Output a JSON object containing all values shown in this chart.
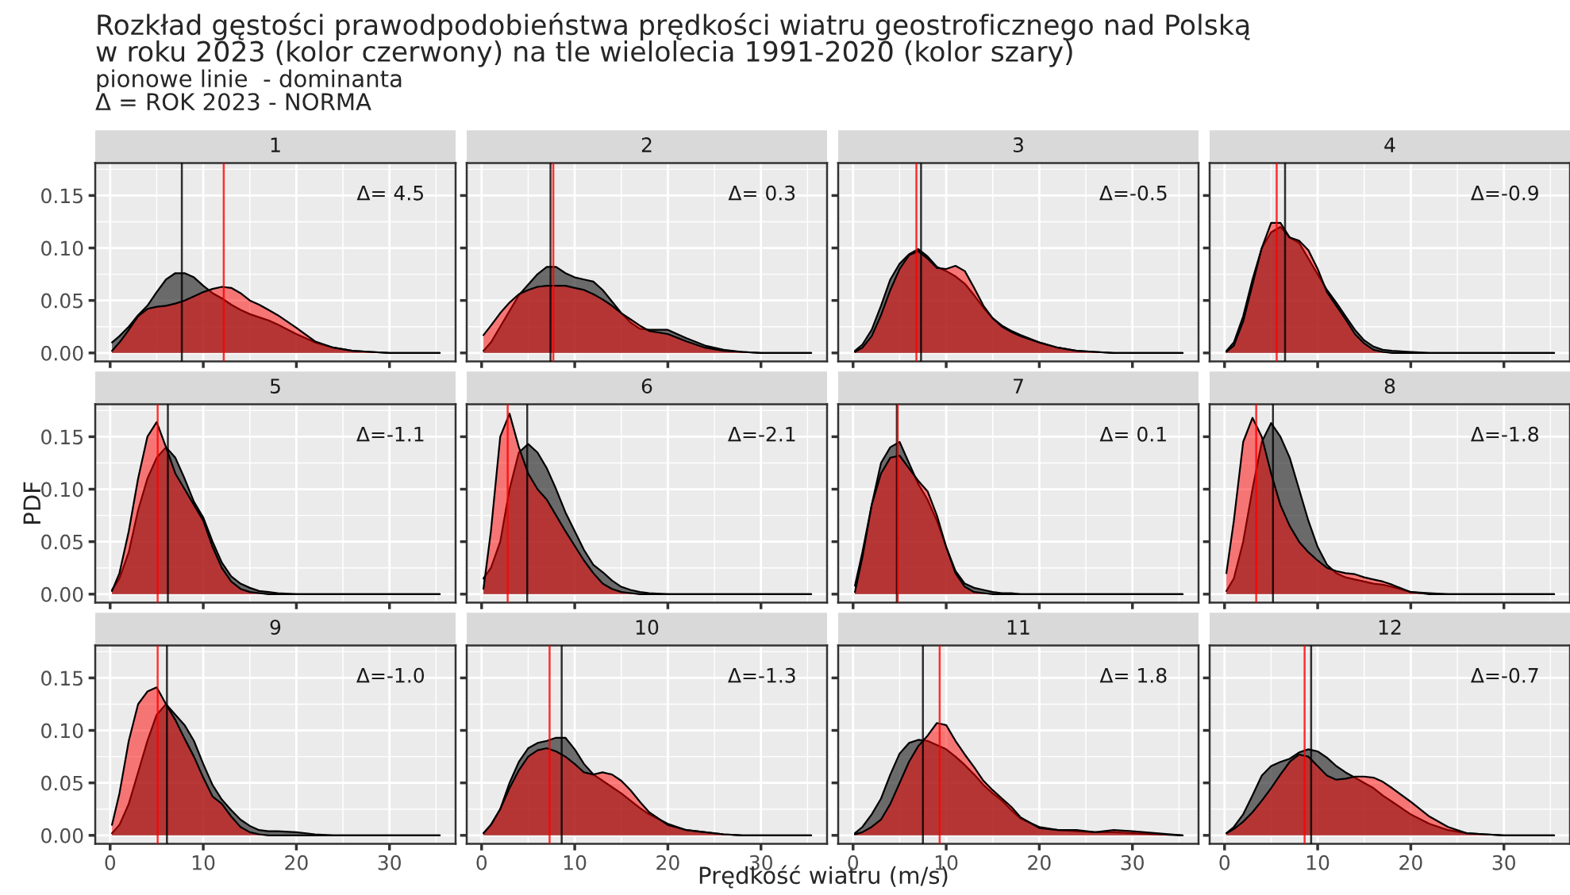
{
  "chart_data": [
    {
      "type": "area",
      "title": "1",
      "tick_labels": "y",
      "grid": true,
      "annotations": [
        "Rozkład gęstości prawodpodobieństwa prędkości wiatru geostroficznego nad Polską\nw roku 2023 (kolor czerwony) na tle wielolecia 1991-2020 (kolor szary)",
        "pionowe linie  - dominanta",
        "Δ = ROK 2023 - NORMA",
        "Δ= 4.5"
      ],
      "x": [
        0.2,
        1,
        2,
        3,
        4,
        5,
        6,
        7,
        8,
        9,
        10,
        11,
        12,
        13,
        14,
        15,
        16,
        17,
        18,
        20,
        22,
        24,
        26,
        28,
        30,
        35.4
      ],
      "series": [
        {
          "color": "#333333",
          "values": [
            0.01,
            0.016,
            0.025,
            0.036,
            0.045,
            0.058,
            0.07,
            0.076,
            0.076,
            0.072,
            0.064,
            0.057,
            0.052,
            0.046,
            0.041,
            0.037,
            0.034,
            0.031,
            0.027,
            0.018,
            0.01,
            0.005,
            0.002,
            0.001,
            0,
            0
          ]
        },
        {
          "color": "#ff0000",
          "values": [
            0.002,
            0.01,
            0.022,
            0.035,
            0.042,
            0.044,
            0.045,
            0.047,
            0.05,
            0.054,
            0.058,
            0.061,
            0.063,
            0.062,
            0.057,
            0.05,
            0.046,
            0.041,
            0.036,
            0.024,
            0.011,
            0.005,
            0.002,
            0.001,
            0,
            0
          ]
        }
      ],
      "ref_lines": [
        {
          "axis": "x",
          "value": 7.7,
          "color": "#000000"
        },
        {
          "axis": "x",
          "value": 12.2,
          "color": "#ff0000"
        }
      ],
      "xlim": [
        -1.6,
        37.1
      ],
      "xticks": [
        {
          "value": 0,
          "label": null
        },
        {
          "value": 10,
          "label": null
        },
        {
          "value": 20,
          "label": null
        },
        {
          "value": 30,
          "label": null
        }
      ],
      "ylim": [
        -0.008,
        0.181
      ],
      "yticks": [
        {
          "value": 0,
          "label": "0.00"
        },
        {
          "value": 0.05,
          "label": "0.05"
        },
        {
          "value": 0.1,
          "label": "0.10"
        },
        {
          "value": 0.15,
          "label": "0.15"
        }
      ]
    },
    {
      "type": "area",
      "title": "2",
      "tick_labels": false,
      "grid": true,
      "annotations": [
        "Δ= 0.3"
      ],
      "x": [
        0.2,
        1,
        2,
        3,
        4,
        5,
        6,
        7,
        8,
        9,
        10,
        11,
        12,
        13,
        14,
        15,
        16,
        17,
        18,
        20,
        22,
        24,
        26,
        28,
        30,
        35.4
      ],
      "series": [
        {
          "color": "#333333",
          "values": [
            0.002,
            0.01,
            0.025,
            0.04,
            0.055,
            0.065,
            0.075,
            0.082,
            0.082,
            0.076,
            0.072,
            0.07,
            0.068,
            0.06,
            0.049,
            0.038,
            0.029,
            0.023,
            0.022,
            0.022,
            0.014,
            0.007,
            0.003,
            0.001,
            0,
            0
          ]
        },
        {
          "color": "#ff0000",
          "values": [
            0.017,
            0.026,
            0.038,
            0.048,
            0.056,
            0.06,
            0.063,
            0.064,
            0.064,
            0.064,
            0.062,
            0.06,
            0.056,
            0.051,
            0.045,
            0.038,
            0.032,
            0.026,
            0.021,
            0.018,
            0.011,
            0.005,
            0.002,
            0.001,
            0,
            0
          ]
        }
      ],
      "ref_lines": [
        {
          "axis": "x",
          "value": 7.4,
          "color": "#000000"
        },
        {
          "axis": "x",
          "value": 7.7,
          "color": "#ff0000"
        }
      ],
      "xlim": [
        -1.6,
        37.1
      ],
      "xticks": [
        {
          "value": 0,
          "label": null
        },
        {
          "value": 10,
          "label": null
        },
        {
          "value": 20,
          "label": null
        },
        {
          "value": 30,
          "label": null
        }
      ],
      "ylim": [
        -0.008,
        0.181
      ],
      "yticks": [
        {
          "value": 0,
          "label": null
        },
        {
          "value": 0.05,
          "label": null
        },
        {
          "value": 0.1,
          "label": null
        },
        {
          "value": 0.15,
          "label": null
        }
      ]
    },
    {
      "type": "area",
      "title": "3",
      "tick_labels": false,
      "grid": true,
      "annotations": [
        "Δ=-0.5"
      ],
      "x": [
        0.2,
        1,
        2,
        3,
        4,
        5,
        6,
        7,
        8,
        9,
        10,
        11,
        12,
        13,
        14,
        15,
        16,
        17,
        18,
        20,
        22,
        24,
        26,
        28,
        30,
        35.4
      ],
      "series": [
        {
          "color": "#333333",
          "values": [
            0.002,
            0.008,
            0.022,
            0.045,
            0.07,
            0.085,
            0.094,
            0.099,
            0.092,
            0.082,
            0.078,
            0.073,
            0.066,
            0.055,
            0.043,
            0.033,
            0.026,
            0.021,
            0.017,
            0.01,
            0.005,
            0.002,
            0.001,
            0,
            0,
            0
          ]
        },
        {
          "color": "#ff0000",
          "values": [
            0.001,
            0.005,
            0.016,
            0.036,
            0.06,
            0.08,
            0.093,
            0.097,
            0.09,
            0.081,
            0.08,
            0.083,
            0.078,
            0.062,
            0.045,
            0.033,
            0.025,
            0.02,
            0.016,
            0.01,
            0.005,
            0.002,
            0.001,
            0,
            0,
            0
          ]
        }
      ],
      "ref_lines": [
        {
          "axis": "x",
          "value": 7.3,
          "color": "#000000"
        },
        {
          "axis": "x",
          "value": 6.8,
          "color": "#ff0000"
        }
      ],
      "xlim": [
        -1.6,
        37.1
      ],
      "xticks": [
        {
          "value": 0,
          "label": null
        },
        {
          "value": 10,
          "label": null
        },
        {
          "value": 20,
          "label": null
        },
        {
          "value": 30,
          "label": null
        }
      ],
      "ylim": [
        -0.008,
        0.181
      ],
      "yticks": [
        {
          "value": 0,
          "label": null
        },
        {
          "value": 0.05,
          "label": null
        },
        {
          "value": 0.1,
          "label": null
        },
        {
          "value": 0.15,
          "label": null
        }
      ]
    },
    {
      "type": "area",
      "title": "4",
      "tick_labels": false,
      "grid": true,
      "annotations": [
        "Δ=-0.9"
      ],
      "x": [
        0.2,
        1,
        2,
        3,
        4,
        5,
        6,
        7,
        8,
        9,
        10,
        11,
        12,
        13,
        14,
        15,
        16,
        17,
        18,
        20,
        22,
        24,
        26,
        28,
        30,
        35.4
      ],
      "series": [
        {
          "color": "#333333",
          "values": [
            0.002,
            0.01,
            0.035,
            0.07,
            0.1,
            0.115,
            0.12,
            0.11,
            0.105,
            0.09,
            0.075,
            0.06,
            0.048,
            0.035,
            0.022,
            0.012,
            0.006,
            0.003,
            0.002,
            0.001,
            0,
            0,
            0,
            0,
            0,
            0
          ]
        },
        {
          "color": "#ff0000",
          "values": [
            0.001,
            0.007,
            0.03,
            0.065,
            0.1,
            0.124,
            0.124,
            0.11,
            0.107,
            0.098,
            0.08,
            0.058,
            0.045,
            0.032,
            0.018,
            0.009,
            0.003,
            0.001,
            0,
            0,
            0,
            0,
            0,
            0,
            0,
            0
          ]
        }
      ],
      "ref_lines": [
        {
          "axis": "x",
          "value": 6.5,
          "color": "#000000"
        },
        {
          "axis": "x",
          "value": 5.6,
          "color": "#ff0000"
        }
      ],
      "xlim": [
        -1.6,
        37.1
      ],
      "xticks": [
        {
          "value": 0,
          "label": null
        },
        {
          "value": 10,
          "label": null
        },
        {
          "value": 20,
          "label": null
        },
        {
          "value": 30,
          "label": null
        }
      ],
      "ylim": [
        -0.008,
        0.181
      ],
      "yticks": [
        {
          "value": 0,
          "label": null
        },
        {
          "value": 0.05,
          "label": null
        },
        {
          "value": 0.1,
          "label": null
        },
        {
          "value": 0.15,
          "label": null
        }
      ]
    },
    {
      "type": "area",
      "title": "5",
      "ylabel": "PDF",
      "tick_labels": "y",
      "grid": true,
      "annotations": [
        "Δ=-1.1"
      ],
      "x": [
        0.2,
        1,
        2,
        3,
        4,
        5,
        6,
        7,
        8,
        9,
        10,
        11,
        12,
        13,
        14,
        15,
        16,
        17,
        18,
        20,
        22,
        24,
        26,
        28,
        30,
        35.4
      ],
      "series": [
        {
          "color": "#333333",
          "values": [
            0.004,
            0.015,
            0.04,
            0.08,
            0.11,
            0.13,
            0.14,
            0.13,
            0.11,
            0.088,
            0.073,
            0.05,
            0.03,
            0.017,
            0.01,
            0.006,
            0.003,
            0.002,
            0.001,
            0,
            0,
            0,
            0,
            0,
            0,
            0
          ]
        },
        {
          "color": "#ff0000",
          "values": [
            0.003,
            0.02,
            0.06,
            0.11,
            0.15,
            0.164,
            0.14,
            0.115,
            0.1,
            0.085,
            0.07,
            0.045,
            0.025,
            0.012,
            0.005,
            0.002,
            0.001,
            0,
            0,
            0,
            0,
            0,
            0,
            0,
            0,
            0
          ]
        }
      ],
      "ref_lines": [
        {
          "axis": "x",
          "value": 6.2,
          "color": "#000000"
        },
        {
          "axis": "x",
          "value": 5.1,
          "color": "#ff0000"
        }
      ],
      "xlim": [
        -1.6,
        37.1
      ],
      "xticks": [
        {
          "value": 0,
          "label": null
        },
        {
          "value": 10,
          "label": null
        },
        {
          "value": 20,
          "label": null
        },
        {
          "value": 30,
          "label": null
        }
      ],
      "ylim": [
        -0.008,
        0.181
      ],
      "yticks": [
        {
          "value": 0,
          "label": "0.00"
        },
        {
          "value": 0.05,
          "label": "0.05"
        },
        {
          "value": 0.1,
          "label": "0.10"
        },
        {
          "value": 0.15,
          "label": "0.15"
        }
      ]
    },
    {
      "type": "area",
      "title": "6",
      "tick_labels": false,
      "grid": true,
      "annotations": [
        "Δ=-2.1"
      ],
      "x": [
        0.2,
        1,
        2,
        3,
        4,
        5,
        6,
        7,
        8,
        9,
        10,
        11,
        12,
        13,
        14,
        15,
        16,
        17,
        18,
        20,
        22,
        24,
        26,
        28,
        30,
        35.4
      ],
      "series": [
        {
          "color": "#333333",
          "values": [
            0.015,
            0.025,
            0.05,
            0.1,
            0.135,
            0.143,
            0.135,
            0.12,
            0.1,
            0.078,
            0.06,
            0.042,
            0.028,
            0.021,
            0.013,
            0.007,
            0.004,
            0.002,
            0.001,
            0,
            0,
            0,
            0,
            0,
            0,
            0
          ]
        },
        {
          "color": "#ff0000",
          "values": [
            0.005,
            0.06,
            0.15,
            0.172,
            0.14,
            0.115,
            0.1,
            0.09,
            0.075,
            0.06,
            0.046,
            0.032,
            0.02,
            0.01,
            0.005,
            0.002,
            0.001,
            0,
            0,
            0,
            0,
            0,
            0,
            0,
            0,
            0
          ]
        }
      ],
      "ref_lines": [
        {
          "axis": "x",
          "value": 4.9,
          "color": "#000000"
        },
        {
          "axis": "x",
          "value": 2.8,
          "color": "#ff0000"
        }
      ],
      "xlim": [
        -1.6,
        37.1
      ],
      "xticks": [
        {
          "value": 0,
          "label": null
        },
        {
          "value": 10,
          "label": null
        },
        {
          "value": 20,
          "label": null
        },
        {
          "value": 30,
          "label": null
        }
      ],
      "ylim": [
        -0.008,
        0.181
      ],
      "yticks": [
        {
          "value": 0,
          "label": null
        },
        {
          "value": 0.05,
          "label": null
        },
        {
          "value": 0.1,
          "label": null
        },
        {
          "value": 0.15,
          "label": null
        }
      ]
    },
    {
      "type": "area",
      "title": "7",
      "tick_labels": false,
      "grid": true,
      "annotations": [
        "Δ= 0.1"
      ],
      "x": [
        0.2,
        1,
        2,
        3,
        4,
        5,
        6,
        7,
        8,
        9,
        10,
        11,
        12,
        13,
        14,
        15,
        16,
        17,
        18,
        20,
        22,
        24,
        26,
        28,
        30,
        35.4
      ],
      "series": [
        {
          "color": "#333333",
          "values": [
            0.008,
            0.04,
            0.085,
            0.125,
            0.14,
            0.145,
            0.125,
            0.105,
            0.09,
            0.07,
            0.045,
            0.022,
            0.01,
            0.006,
            0.004,
            0.002,
            0.001,
            0.001,
            0,
            0,
            0,
            0,
            0,
            0,
            0,
            0
          ]
        },
        {
          "color": "#ff0000",
          "values": [
            0.002,
            0.035,
            0.085,
            0.115,
            0.13,
            0.132,
            0.12,
            0.108,
            0.098,
            0.075,
            0.045,
            0.02,
            0.007,
            0.002,
            0.001,
            0,
            0,
            0,
            0,
            0,
            0,
            0,
            0,
            0,
            0,
            0
          ]
        }
      ],
      "ref_lines": [
        {
          "axis": "x",
          "value": 4.7,
          "color": "#000000"
        },
        {
          "axis": "x",
          "value": 4.8,
          "color": "#ff0000"
        }
      ],
      "xlim": [
        -1.6,
        37.1
      ],
      "xticks": [
        {
          "value": 0,
          "label": null
        },
        {
          "value": 10,
          "label": null
        },
        {
          "value": 20,
          "label": null
        },
        {
          "value": 30,
          "label": null
        }
      ],
      "ylim": [
        -0.008,
        0.181
      ],
      "yticks": [
        {
          "value": 0,
          "label": null
        },
        {
          "value": 0.05,
          "label": null
        },
        {
          "value": 0.1,
          "label": null
        },
        {
          "value": 0.15,
          "label": null
        }
      ]
    },
    {
      "type": "area",
      "title": "8",
      "tick_labels": false,
      "grid": true,
      "annotations": [
        "Δ=-1.8"
      ],
      "x": [
        0.2,
        1,
        2,
        3,
        4,
        5,
        6,
        7,
        8,
        9,
        10,
        11,
        12,
        13,
        14,
        15,
        16,
        17,
        18,
        20,
        22,
        24,
        26,
        28,
        30,
        35.4
      ],
      "series": [
        {
          "color": "#333333",
          "values": [
            0.003,
            0.015,
            0.05,
            0.1,
            0.145,
            0.163,
            0.15,
            0.13,
            0.1,
            0.07,
            0.045,
            0.028,
            0.02,
            0.016,
            0.014,
            0.012,
            0.01,
            0.009,
            0.007,
            0.002,
            0.001,
            0,
            0,
            0,
            0,
            0
          ]
        },
        {
          "color": "#ff0000",
          "values": [
            0.02,
            0.07,
            0.145,
            0.168,
            0.15,
            0.115,
            0.085,
            0.065,
            0.05,
            0.04,
            0.032,
            0.025,
            0.022,
            0.02,
            0.019,
            0.016,
            0.014,
            0.012,
            0.009,
            0.002,
            0,
            0,
            0,
            0,
            0,
            0
          ]
        }
      ],
      "ref_lines": [
        {
          "axis": "x",
          "value": 5.2,
          "color": "#000000"
        },
        {
          "axis": "x",
          "value": 3.4,
          "color": "#ff0000"
        }
      ],
      "xlim": [
        -1.6,
        37.1
      ],
      "xticks": [
        {
          "value": 0,
          "label": null
        },
        {
          "value": 10,
          "label": null
        },
        {
          "value": 20,
          "label": null
        },
        {
          "value": 30,
          "label": null
        }
      ],
      "ylim": [
        -0.008,
        0.181
      ],
      "yticks": [
        {
          "value": 0,
          "label": null
        },
        {
          "value": 0.05,
          "label": null
        },
        {
          "value": 0.1,
          "label": null
        },
        {
          "value": 0.15,
          "label": null
        }
      ]
    },
    {
      "type": "area",
      "title": "9",
      "grid": true,
      "annotations": [
        "Δ=-1.0"
      ],
      "x": [
        0.2,
        1,
        2,
        3,
        4,
        5,
        6,
        7,
        8,
        9,
        10,
        11,
        12,
        13,
        14,
        15,
        16,
        17,
        18,
        20,
        22,
        24,
        26,
        28,
        30,
        35.4
      ],
      "series": [
        {
          "color": "#333333",
          "values": [
            0.002,
            0.01,
            0.03,
            0.06,
            0.09,
            0.115,
            0.125,
            0.115,
            0.105,
            0.09,
            0.068,
            0.048,
            0.034,
            0.024,
            0.015,
            0.009,
            0.005,
            0.004,
            0.004,
            0.003,
            0.001,
            0,
            0,
            0,
            0,
            0
          ]
        },
        {
          "color": "#ff0000",
          "values": [
            0.01,
            0.04,
            0.09,
            0.125,
            0.137,
            0.141,
            0.125,
            0.11,
            0.092,
            0.075,
            0.055,
            0.037,
            0.03,
            0.018,
            0.008,
            0.003,
            0.001,
            0,
            0,
            0,
            0,
            0,
            0,
            0,
            0,
            0
          ]
        }
      ],
      "ref_lines": [
        {
          "axis": "x",
          "value": 6.1,
          "color": "#000000"
        },
        {
          "axis": "x",
          "value": 5.1,
          "color": "#ff0000"
        }
      ],
      "xlim": [
        -1.6,
        37.1
      ],
      "xticks": [
        0,
        10,
        20,
        30
      ],
      "ylim": [
        -0.008,
        0.181
      ],
      "yticks": [
        {
          "value": 0,
          "label": "0.00"
        },
        {
          "value": 0.05,
          "label": "0.05"
        },
        {
          "value": 0.1,
          "label": "0.10"
        },
        {
          "value": 0.15,
          "label": "0.15"
        }
      ]
    },
    {
      "type": "area",
      "title": "10",
      "xlabel": "Prędkość wiatru (m/s)",
      "tick_labels": "x",
      "grid": true,
      "annotations": [
        "Δ=-1.3"
      ],
      "x": [
        0.2,
        1,
        2,
        3,
        4,
        5,
        6,
        7,
        8,
        9,
        10,
        11,
        12,
        13,
        14,
        15,
        16,
        17,
        18,
        20,
        22,
        24,
        26,
        28,
        30,
        35.4
      ],
      "series": [
        {
          "color": "#333333",
          "values": [
            0.002,
            0.01,
            0.025,
            0.05,
            0.07,
            0.083,
            0.088,
            0.09,
            0.093,
            0.093,
            0.082,
            0.068,
            0.058,
            0.052,
            0.046,
            0.04,
            0.033,
            0.026,
            0.02,
            0.011,
            0.005,
            0.003,
            0.001,
            0,
            0,
            0
          ]
        },
        {
          "color": "#ff0000",
          "values": [
            0.002,
            0.01,
            0.025,
            0.045,
            0.062,
            0.075,
            0.081,
            0.083,
            0.08,
            0.075,
            0.068,
            0.06,
            0.058,
            0.06,
            0.058,
            0.052,
            0.043,
            0.032,
            0.022,
            0.01,
            0.005,
            0.003,
            0.001,
            0,
            0,
            0
          ]
        }
      ],
      "ref_lines": [
        {
          "axis": "x",
          "value": 8.6,
          "color": "#000000"
        },
        {
          "axis": "x",
          "value": 7.3,
          "color": "#ff0000"
        }
      ],
      "xlim": [
        -1.6,
        37.1
      ],
      "xticks": [
        0,
        10,
        20,
        30
      ],
      "ylim": [
        -0.008,
        0.181
      ],
      "yticks": [
        {
          "value": 0,
          "label": null
        },
        {
          "value": 0.05,
          "label": null
        },
        {
          "value": 0.1,
          "label": null
        },
        {
          "value": 0.15,
          "label": null
        }
      ]
    },
    {
      "type": "area",
      "title": "11",
      "tick_labels": "x",
      "grid": true,
      "annotations": [
        "Δ= 1.8"
      ],
      "x": [
        0.2,
        1,
        2,
        3,
        4,
        5,
        6,
        7,
        8,
        9,
        10,
        11,
        12,
        13,
        14,
        15,
        16,
        17,
        18,
        20,
        22,
        24,
        26,
        28,
        30,
        35.4
      ],
      "series": [
        {
          "color": "#333333",
          "values": [
            0.002,
            0.008,
            0.02,
            0.035,
            0.058,
            0.078,
            0.088,
            0.091,
            0.09,
            0.086,
            0.082,
            0.075,
            0.067,
            0.058,
            0.048,
            0.04,
            0.033,
            0.024,
            0.016,
            0.008,
            0.005,
            0.004,
            0.003,
            0.003,
            0.002,
            0
          ]
        },
        {
          "color": "#ff0000",
          "values": [
            0.001,
            0.003,
            0.008,
            0.015,
            0.03,
            0.05,
            0.07,
            0.085,
            0.095,
            0.107,
            0.105,
            0.09,
            0.077,
            0.065,
            0.052,
            0.043,
            0.035,
            0.027,
            0.017,
            0.007,
            0.005,
            0.005,
            0.003,
            0.005,
            0.004,
            0
          ]
        }
      ],
      "ref_lines": [
        {
          "axis": "x",
          "value": 7.5,
          "color": "#000000"
        },
        {
          "axis": "x",
          "value": 9.3,
          "color": "#ff0000"
        }
      ],
      "xlim": [
        -1.6,
        37.1
      ],
      "xticks": [
        0,
        10,
        20,
        30
      ],
      "ylim": [
        -0.008,
        0.181
      ],
      "yticks": [
        {
          "value": 0,
          "label": null
        },
        {
          "value": 0.05,
          "label": null
        },
        {
          "value": 0.1,
          "label": null
        },
        {
          "value": 0.15,
          "label": null
        }
      ]
    },
    {
      "type": "area",
      "title": "12",
      "tick_labels": "x",
      "grid": true,
      "annotations": [
        "Δ=-0.7"
      ],
      "x": [
        0.2,
        1,
        2,
        3,
        4,
        5,
        6,
        7,
        8,
        9,
        10,
        11,
        12,
        13,
        14,
        15,
        16,
        17,
        18,
        20,
        22,
        24,
        26,
        28,
        30,
        35.4
      ],
      "series": [
        {
          "color": "#333333",
          "values": [
            0.002,
            0.008,
            0.02,
            0.038,
            0.057,
            0.066,
            0.07,
            0.073,
            0.079,
            0.082,
            0.08,
            0.074,
            0.066,
            0.06,
            0.055,
            0.05,
            0.045,
            0.038,
            0.032,
            0.02,
            0.011,
            0.005,
            0.002,
            0.001,
            0,
            0
          ]
        },
        {
          "color": "#ff0000",
          "values": [
            0.002,
            0.006,
            0.013,
            0.022,
            0.033,
            0.045,
            0.058,
            0.07,
            0.077,
            0.075,
            0.066,
            0.057,
            0.053,
            0.054,
            0.056,
            0.056,
            0.055,
            0.051,
            0.045,
            0.032,
            0.018,
            0.008,
            0.002,
            0.001,
            0,
            0
          ]
        }
      ],
      "ref_lines": [
        {
          "axis": "x",
          "value": 9.3,
          "color": "#000000"
        },
        {
          "axis": "x",
          "value": 8.6,
          "color": "#ff0000"
        }
      ],
      "xlim": [
        -1.6,
        37.1
      ],
      "xticks": [
        0,
        10,
        20,
        30
      ],
      "ylim": [
        -0.008,
        0.181
      ],
      "yticks": [
        {
          "value": 0,
          "label": null
        },
        {
          "value": 0.05,
          "label": null
        },
        {
          "value": 0.1,
          "label": null
        },
        {
          "value": 0.15,
          "label": null
        }
      ]
    }
  ]
}
